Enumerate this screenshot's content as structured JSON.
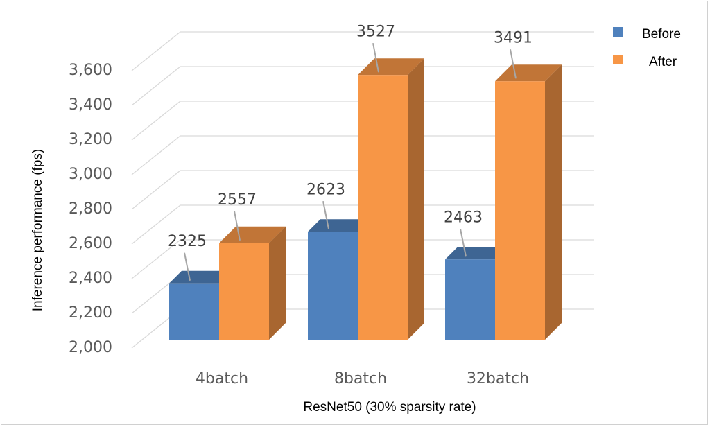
{
  "chart_data": {
    "type": "bar",
    "title": "",
    "categories": [
      "4batch",
      "8batch",
      "32batch"
    ],
    "series": [
      {
        "name": "Before",
        "values": [
          2325,
          2623,
          2463
        ],
        "color": "#4f81bd"
      },
      {
        "name": "After",
        "values": [
          2557,
          3527,
          3491
        ],
        "color": "#f79646"
      }
    ],
    "xlabel": "ResNet50 (30% sparsity rate)",
    "ylabel": "Inference performance (fps)",
    "ylim": [
      2000,
      3600
    ],
    "yticks": [
      "2,000",
      "2,200",
      "2,400",
      "2,600",
      "2,800",
      "3,000",
      "3,200",
      "3,400",
      "3,600"
    ],
    "grid": true,
    "legend": "top-right",
    "style": "3d-column"
  }
}
